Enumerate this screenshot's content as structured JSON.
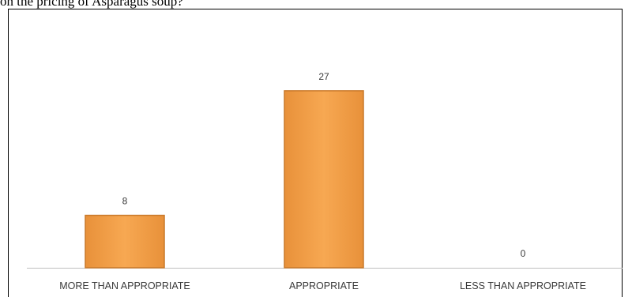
{
  "caption": "on the pricing of Asparagus soup?",
  "chart_data": {
    "type": "bar",
    "categories": [
      "MORE THAN APPROPRIATE",
      "APPROPRIATE",
      "LESS THAN APPROPRIATE"
    ],
    "values": [
      8,
      27,
      0
    ],
    "data_labels": [
      "8",
      "27",
      "0"
    ],
    "ylim": [
      0,
      30
    ],
    "grid": false,
    "legend": "none",
    "bar_color": "#F5A24B",
    "bar_edge_color": "#C9792A",
    "axis_color": "#BFBFBF"
  }
}
